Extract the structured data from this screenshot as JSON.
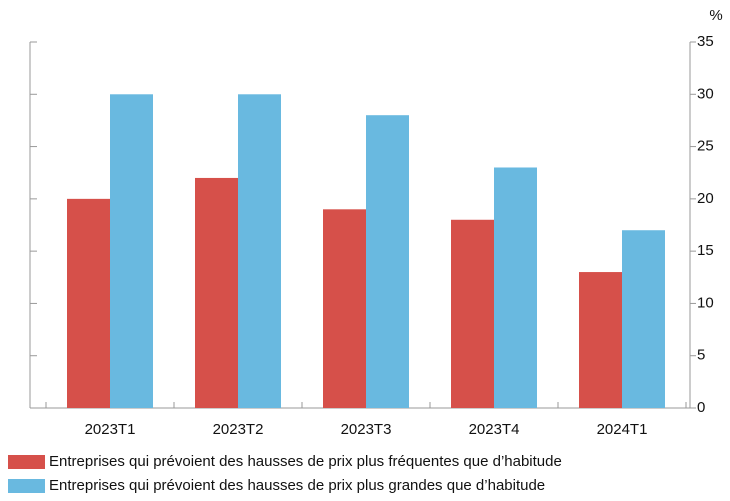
{
  "chart_data": {
    "type": "bar",
    "y_unit_label": "%",
    "categories": [
      "2023T1",
      "2023T2",
      "2023T3",
      "2023T4",
      "2024T1"
    ],
    "series": [
      {
        "name": "Entreprises qui prévoient des hausses de prix plus fréquentes que d’habitude",
        "color": "#d6504a",
        "values": [
          20,
          22,
          19,
          18,
          13
        ]
      },
      {
        "name": "Entreprises qui prévoient des hausses de prix plus grandes que d’habitude",
        "color": "#69b9e0",
        "values": [
          30,
          30,
          28,
          23,
          17
        ]
      }
    ],
    "ylim": [
      0,
      35
    ],
    "yticks": [
      0,
      5,
      10,
      15,
      20,
      25,
      30,
      35
    ],
    "y_axis_side": "right",
    "grid": false
  }
}
